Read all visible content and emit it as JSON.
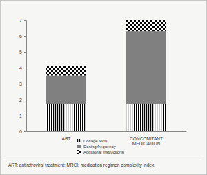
{
  "chart_data": {
    "type": "bar",
    "stacked": true,
    "categories": [
      "ART",
      "CONCOMITANT MEDICATION"
    ],
    "series": [
      {
        "name": "Dosage form",
        "color": "#000000",
        "values": [
          1.7,
          1.7
        ]
      },
      {
        "name": "Dosing frequency",
        "color": "#808080",
        "values": [
          1.8,
          4.6
        ]
      },
      {
        "name": "Additional instructions",
        "color": "#000000",
        "values": [
          0.6,
          0.7
        ]
      }
    ],
    "ylim": [
      0,
      7
    ],
    "yticks": [
      0,
      1,
      2,
      3,
      4,
      5,
      6,
      7
    ],
    "grid": false,
    "legend": "bottom",
    "annotations": [
      "ART: antiretroviral treatment; MRCI: medication regimen complexity index."
    ]
  }
}
